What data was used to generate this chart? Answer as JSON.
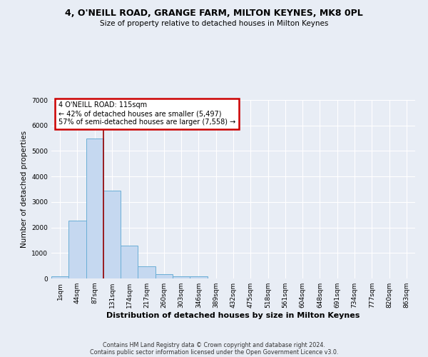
{
  "title": "4, O'NEILL ROAD, GRANGE FARM, MILTON KEYNES, MK8 0PL",
  "subtitle": "Size of property relative to detached houses in Milton Keynes",
  "xlabel": "Distribution of detached houses by size in Milton Keynes",
  "ylabel": "Number of detached properties",
  "bar_color": "#c5d8f0",
  "bar_edge_color": "#6aaed6",
  "background_color": "#e8edf5",
  "grid_color": "#ffffff",
  "categories": [
    "1sqm",
    "44sqm",
    "87sqm",
    "131sqm",
    "174sqm",
    "217sqm",
    "260sqm",
    "303sqm",
    "346sqm",
    "389sqm",
    "432sqm",
    "475sqm",
    "518sqm",
    "561sqm",
    "604sqm",
    "648sqm",
    "691sqm",
    "734sqm",
    "777sqm",
    "820sqm",
    "863sqm"
  ],
  "bar_values": [
    90,
    2270,
    5500,
    3450,
    1300,
    480,
    160,
    80,
    80,
    0,
    0,
    0,
    0,
    0,
    0,
    0,
    0,
    0,
    0,
    0,
    0
  ],
  "ylim": [
    0,
    7000
  ],
  "yticks": [
    0,
    1000,
    2000,
    3000,
    4000,
    5000,
    6000,
    7000
  ],
  "red_line_x": 2.5,
  "annotation_line1": "4 O'NEILL ROAD: 115sqm",
  "annotation_line2": "← 42% of detached houses are smaller (5,497)",
  "annotation_line3": "57% of semi-detached houses are larger (7,558) →",
  "annotation_box_color": "#ffffff",
  "annotation_box_edge": "#cc0000",
  "footer_line1": "Contains HM Land Registry data © Crown copyright and database right 2024.",
  "footer_line2": "Contains public sector information licensed under the Open Government Licence v3.0."
}
